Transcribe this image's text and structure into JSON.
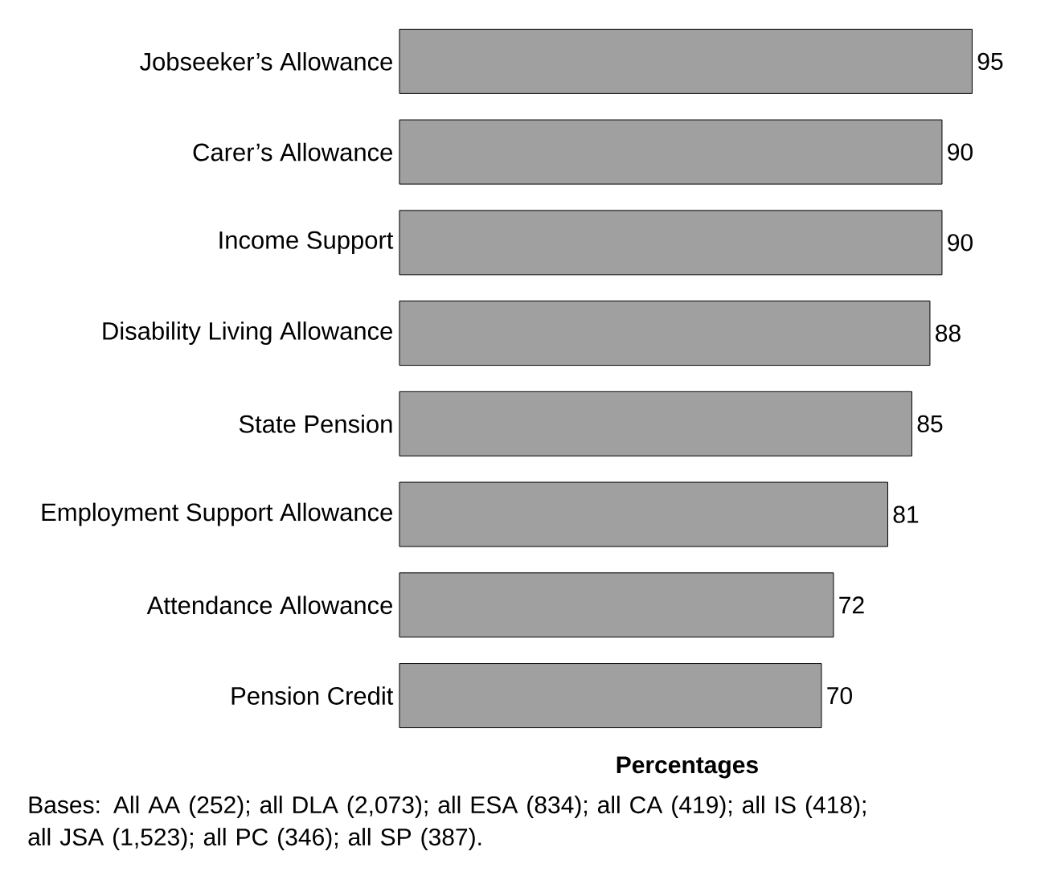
{
  "chart_data": {
    "type": "bar",
    "orientation": "horizontal",
    "xlabel": "Percentages",
    "color": "#a0a0a1",
    "data_labels": true,
    "categories": [
      "Jobseeker’s Allowance",
      "Carer’s Allowance",
      "Income Support",
      "Disability Living Allowance",
      "State Pension",
      "Employment Support Allowance",
      "Attendance Allowance",
      "Pension Credit"
    ],
    "values": [
      95,
      90,
      90,
      88,
      85,
      81,
      72,
      70
    ],
    "annotations": [
      "Bases: All AA (252); all DLA (2,073); all ESA (834); all CA (419); all IS (418); all JSA (1,523); all PC (346); all SP (387)."
    ]
  }
}
